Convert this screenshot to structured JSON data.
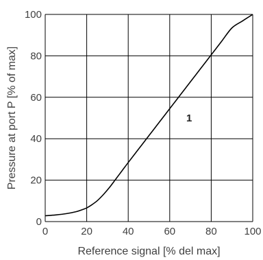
{
  "chart_data": {
    "type": "line",
    "xlabel": "Reference signal [% del max]",
    "ylabel": "Pressure at port P [% of max]",
    "xlim": [
      0,
      100
    ],
    "ylim": [
      0,
      100
    ],
    "x_ticks": [
      "0",
      "20",
      "40",
      "60",
      "80",
      "100"
    ],
    "y_ticks": [
      "0",
      "20",
      "40",
      "60",
      "80",
      "100"
    ],
    "grid": true,
    "legend": "none",
    "series": [
      {
        "x": [
          0,
          5,
          10,
          15,
          18,
          20,
          22,
          25,
          28,
          31,
          34,
          37,
          40,
          45,
          50,
          55,
          60,
          65,
          70,
          75,
          80,
          85,
          90,
          95,
          100
        ],
        "y": [
          2.8,
          3.2,
          3.8,
          4.8,
          5.8,
          6.6,
          7.8,
          10.0,
          13.0,
          16.5,
          20.5,
          24.5,
          28.5,
          35.0,
          41.5,
          48.0,
          54.5,
          61.0,
          67.5,
          74.0,
          80.5,
          87.0,
          93.5,
          96.8,
          100
        ]
      }
    ],
    "annotations": [
      {
        "text": "1",
        "x": 68,
        "y": 50
      }
    ],
    "colors": {
      "line": "#000000",
      "grid": "#000000",
      "text": "#404040"
    }
  }
}
